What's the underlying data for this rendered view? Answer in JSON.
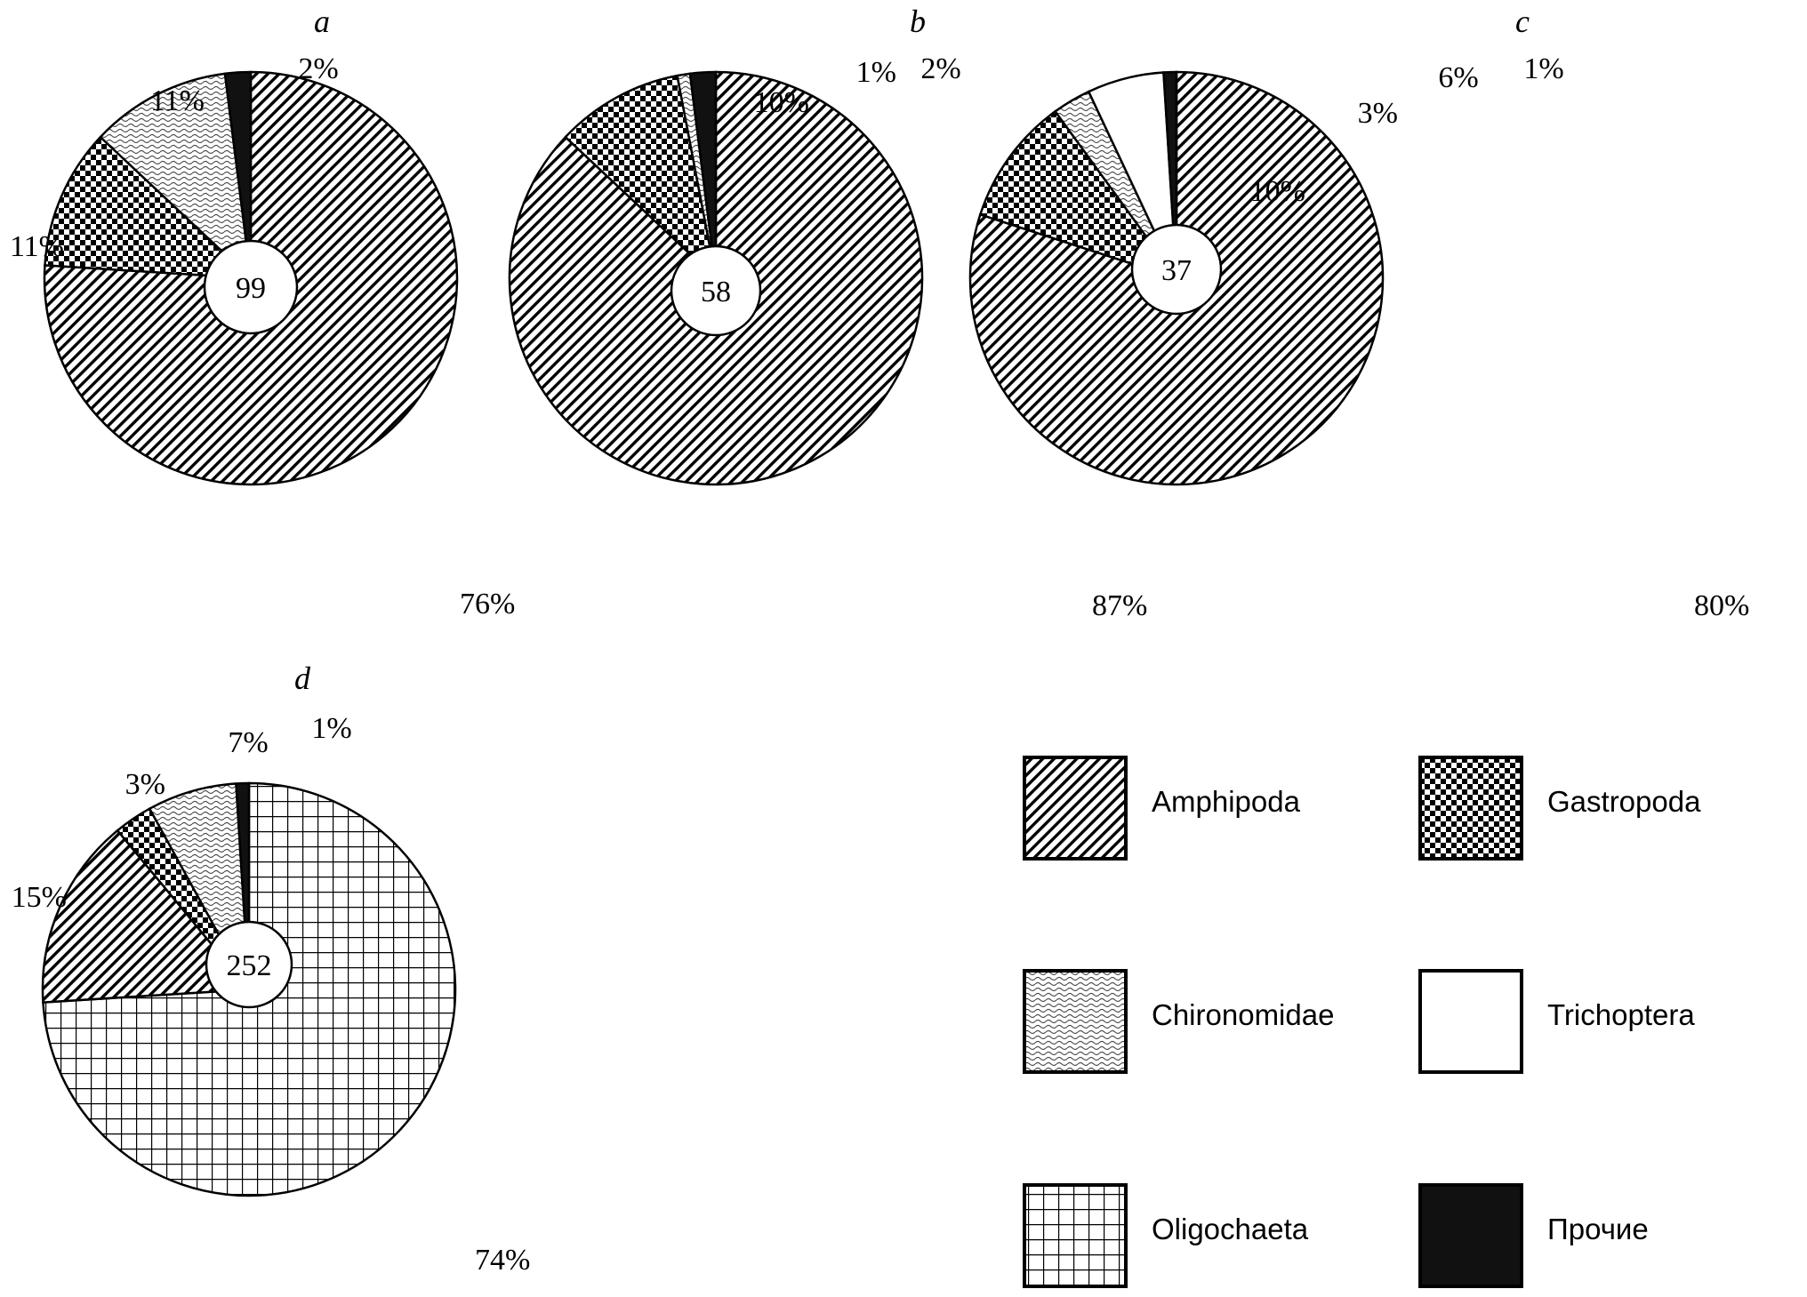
{
  "chart_data": [
    {
      "type": "pie",
      "panel": "a",
      "total": "99",
      "slices": [
        {
          "name": "Amphipoda",
          "value": 76,
          "label": "76%"
        },
        {
          "name": "Gastropoda",
          "value": 11,
          "label": "11%"
        },
        {
          "name": "Chironomidae",
          "value": 11,
          "label": "11%"
        },
        {
          "name": "Прочие",
          "value": 2,
          "label": "2%"
        }
      ]
    },
    {
      "type": "pie",
      "panel": "b",
      "total": "58",
      "slices": [
        {
          "name": "Amphipoda",
          "value": 87,
          "label": "87%"
        },
        {
          "name": "Gastropoda",
          "value": 10,
          "label": "10%"
        },
        {
          "name": "Chironomidae",
          "value": 1,
          "label": "1%"
        },
        {
          "name": "Прочие",
          "value": 2,
          "label": "2%"
        }
      ]
    },
    {
      "type": "pie",
      "panel": "c",
      "total": "37",
      "slices": [
        {
          "name": "Amphipoda",
          "value": 80,
          "label": "80%"
        },
        {
          "name": "Gastropoda",
          "value": 10,
          "label": "10%"
        },
        {
          "name": "Chironomidae",
          "value": 3,
          "label": "3%"
        },
        {
          "name": "Trichoptera",
          "value": 6,
          "label": "6%"
        },
        {
          "name": "Прочие",
          "value": 1,
          "label": "1%"
        }
      ]
    },
    {
      "type": "pie",
      "panel": "d",
      "total": "252",
      "slices": [
        {
          "name": "Oligochaeta",
          "value": 74,
          "label": "74%"
        },
        {
          "name": "Amphipoda",
          "value": 15,
          "label": "15%"
        },
        {
          "name": "Gastropoda",
          "value": 3,
          "label": "3%"
        },
        {
          "name": "Chironomidae",
          "value": 7,
          "label": "7%"
        },
        {
          "name": "Прочие",
          "value": 1,
          "label": "1%"
        }
      ]
    }
  ],
  "legend": [
    {
      "name": "Amphipoda",
      "pattern": "diagonal-hatch"
    },
    {
      "name": "Gastropoda",
      "pattern": "checkerboard"
    },
    {
      "name": "Chironomidae",
      "pattern": "wavy"
    },
    {
      "name": "Trichoptera",
      "pattern": "blank"
    },
    {
      "name": "Oligochaeta",
      "pattern": "grid"
    },
    {
      "name": "Прочие",
      "pattern": "solid-black"
    }
  ]
}
